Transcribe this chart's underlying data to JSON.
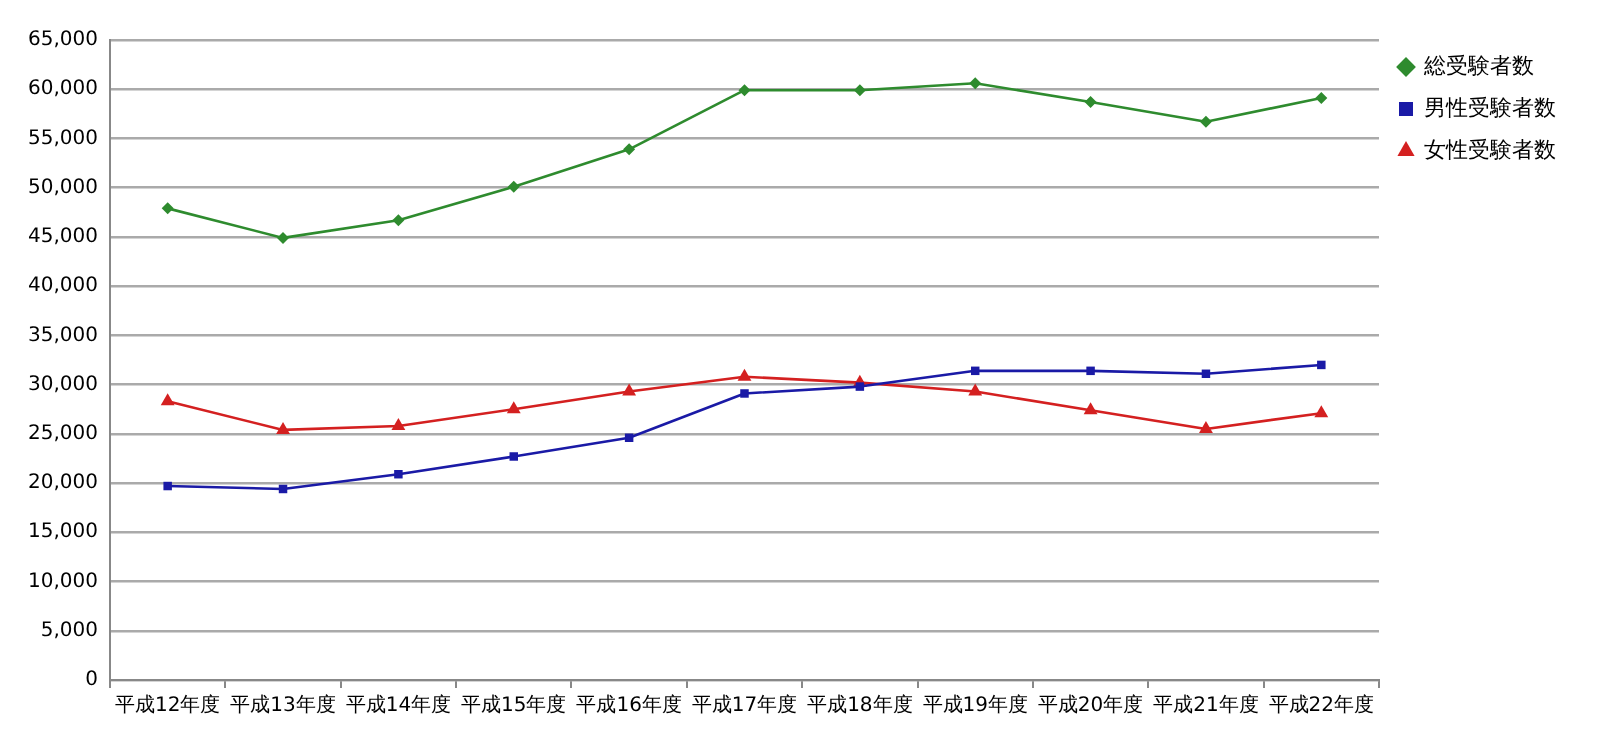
{
  "chart_data": {
    "type": "line",
    "categories": [
      "平成12年度",
      "平成13年度",
      "平成14年度",
      "平成15年度",
      "平成16年度",
      "平成17年度",
      "平成18年度",
      "平成19年度",
      "平成20年度",
      "平成21年度",
      "平成22年度"
    ],
    "series": [
      {
        "name": "総受験者数",
        "color": "#2e8b2e",
        "marker": "diamond",
        "values": [
          47900,
          44900,
          46700,
          50100,
          53900,
          59900,
          59900,
          60600,
          58700,
          56700,
          59100
        ]
      },
      {
        "name": "男性受験者数",
        "color": "#1a1aa6",
        "marker": "square",
        "values": [
          19700,
          19400,
          20900,
          22700,
          24600,
          29100,
          29800,
          31400,
          31400,
          31100,
          32000
        ]
      },
      {
        "name": "女性受験者数",
        "color": "#d42020",
        "marker": "triangle",
        "values": [
          28300,
          25400,
          25800,
          27500,
          29300,
          30800,
          30200,
          29300,
          27400,
          25500,
          27100
        ]
      }
    ],
    "ylim": [
      0,
      65000
    ],
    "yticks": [
      0,
      {
        "value": 5000,
        "label": "5,000"
      },
      {
        "value": 10000,
        "label": "10,000"
      },
      {
        "value": 15000,
        "label": "15,000"
      },
      {
        "value": 20000,
        "label": "20,000"
      },
      {
        "value": 25000,
        "label": "25,000"
      },
      {
        "value": 30000,
        "label": "30,000"
      },
      {
        "value": 35000,
        "label": "35,000"
      },
      {
        "value": 40000,
        "label": "40,000"
      },
      {
        "value": 45000,
        "label": "45,000"
      },
      {
        "value": 50000,
        "label": "50,000"
      },
      {
        "value": 55000,
        "label": "55,000"
      },
      {
        "value": 60000,
        "label": "60,000"
      },
      {
        "value": 65000,
        "label": "65,000"
      }
    ],
    "grid": "y",
    "legend": "top right",
    "line_style": "solid"
  }
}
